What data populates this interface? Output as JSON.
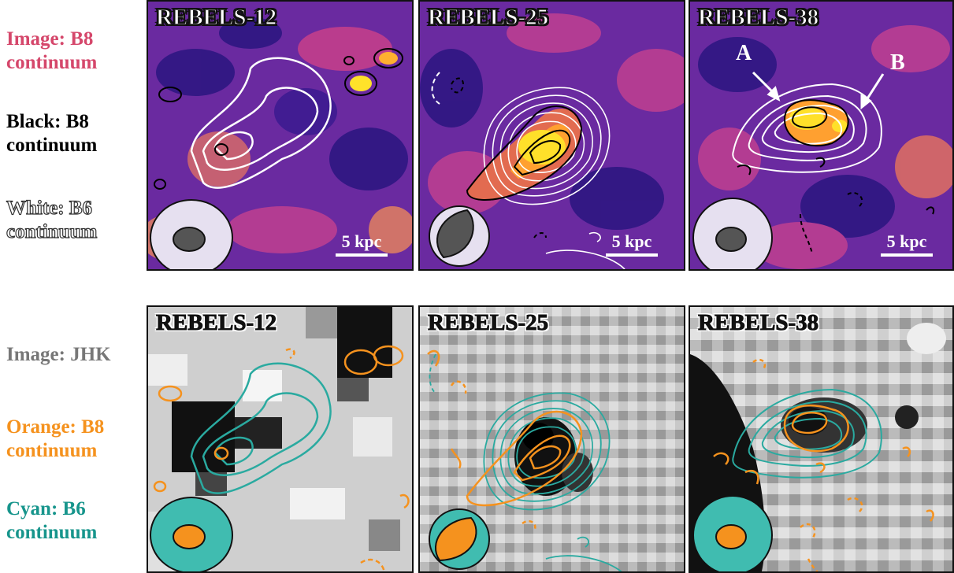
{
  "legend_top": {
    "image_label": "Image: B8\ncontinuum",
    "black_label": "Black: B8\ncontinuum",
    "white_label": "White: B6\ncontinuum",
    "image_color": "#d5476b",
    "black_color": "#000000"
  },
  "legend_bottom": {
    "image_label": "Image: JHK",
    "orange_label": "Orange: B8\ncontinuum",
    "cyan_label": "Cyan: B6\ncontinuum",
    "image_color": "#777777",
    "orange_color": "#f5921e",
    "cyan_color": "#17958c"
  },
  "panels_top": [
    {
      "title": "REBELS-12",
      "scale": "5 kpc"
    },
    {
      "title": "REBELS-25",
      "scale": "5 kpc"
    },
    {
      "title": "REBELS-38",
      "scale": "5 kpc",
      "marker_a": "A",
      "marker_b": "B"
    }
  ],
  "panels_bottom": [
    {
      "title": "REBELS-12"
    },
    {
      "title": "REBELS-25"
    },
    {
      "title": "REBELS-38"
    }
  ]
}
